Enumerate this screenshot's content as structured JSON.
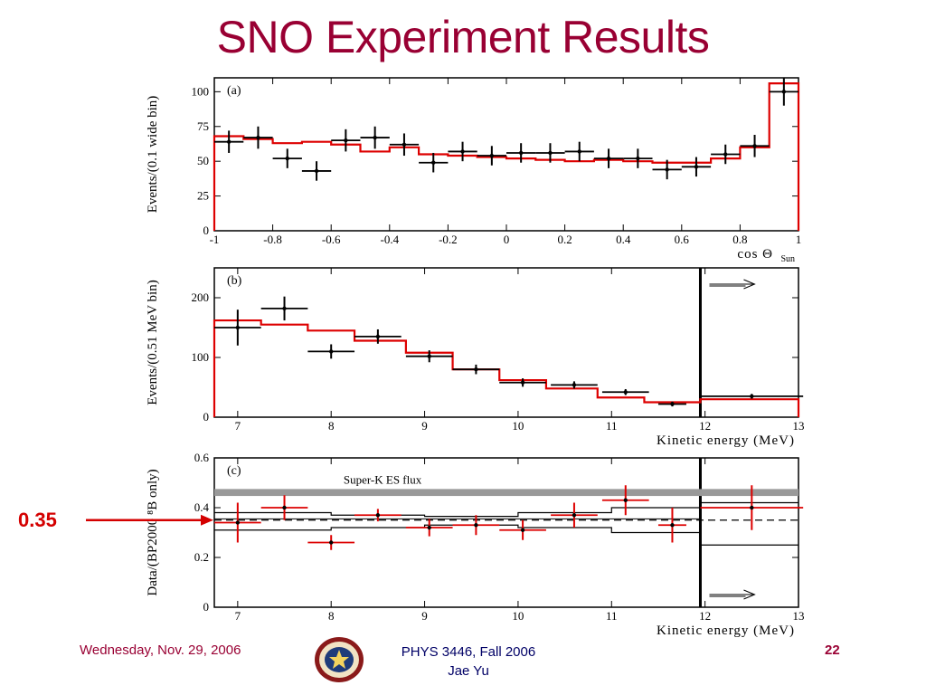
{
  "slide": {
    "title": "SNO Experiment Results",
    "callout_label": "0.35",
    "footer_date": "Wednesday, Nov. 29, 2006",
    "footer_course": "PHYS 3446, Fall 2006",
    "footer_author": "Jae Yu",
    "page_number": "22"
  },
  "colors": {
    "title": "#990033",
    "fit": "#dd0000",
    "data": "#000000",
    "band": "#999999",
    "callout": "#d40000"
  },
  "chart_data": [
    {
      "type": "line",
      "panel_label": "(a)",
      "ylabel": "Events/(0.1 wide bin)",
      "xlabel": "cos Θ",
      "xlabel_sub": "Sun",
      "xlim": [
        -1,
        1
      ],
      "ylim": [
        0,
        110
      ],
      "xticks": [
        -1,
        -0.8,
        -0.6,
        -0.4,
        -0.2,
        0,
        0.2,
        0.4,
        0.6,
        0.8,
        1
      ],
      "xtick_labels": [
        "-1",
        "-0.8",
        "-0.6",
        "-0.4",
        "-0.2",
        "0",
        "0.2",
        "0.4",
        "0.6",
        "0.8",
        "1"
      ],
      "yticks": [
        0,
        25,
        50,
        75,
        100
      ],
      "ytick_labels": [
        "0",
        "25",
        "50",
        "75",
        "100"
      ],
      "data_points": [
        {
          "x": -0.95,
          "y": 64,
          "err": 8
        },
        {
          "x": -0.85,
          "y": 67,
          "err": 8
        },
        {
          "x": -0.75,
          "y": 52,
          "err": 7
        },
        {
          "x": -0.65,
          "y": 43,
          "err": 7
        },
        {
          "x": -0.55,
          "y": 65,
          "err": 8
        },
        {
          "x": -0.45,
          "y": 67,
          "err": 8
        },
        {
          "x": -0.35,
          "y": 62,
          "err": 8
        },
        {
          "x": -0.25,
          "y": 49,
          "err": 7
        },
        {
          "x": -0.15,
          "y": 57,
          "err": 7
        },
        {
          "x": -0.05,
          "y": 54,
          "err": 7
        },
        {
          "x": 0.05,
          "y": 56,
          "err": 7
        },
        {
          "x": 0.15,
          "y": 56,
          "err": 7
        },
        {
          "x": 0.25,
          "y": 57,
          "err": 7
        },
        {
          "x": 0.35,
          "y": 52,
          "err": 7
        },
        {
          "x": 0.45,
          "y": 52,
          "err": 7
        },
        {
          "x": 0.55,
          "y": 44,
          "err": 7
        },
        {
          "x": 0.65,
          "y": 46,
          "err": 7
        },
        {
          "x": 0.75,
          "y": 55,
          "err": 7
        },
        {
          "x": 0.85,
          "y": 61,
          "err": 8
        },
        {
          "x": 0.95,
          "y": 100,
          "err": 10
        }
      ],
      "fit_edges": [
        -1,
        -0.9,
        -0.8,
        -0.7,
        -0.6,
        -0.5,
        -0.4,
        -0.3,
        -0.2,
        -0.1,
        0,
        0.1,
        0.2,
        0.3,
        0.4,
        0.5,
        0.6,
        0.7,
        0.8,
        0.9,
        1
      ],
      "fit_values": [
        68,
        66,
        63,
        64,
        62,
        57,
        60,
        55,
        54,
        53,
        52,
        51,
        50,
        51,
        50,
        49,
        49,
        52,
        60,
        106
      ]
    },
    {
      "type": "line",
      "panel_label": "(b)",
      "ylabel": "Events/(0.51 MeV bin)",
      "xlabel": "Kinetic energy (MeV)",
      "xlim": [
        6.75,
        13
      ],
      "ylim": [
        0,
        250
      ],
      "xticks": [
        7,
        8,
        9,
        10,
        11,
        12,
        13
      ],
      "xtick_labels": [
        "7",
        "8",
        "9",
        "10",
        "11",
        "12",
        "13"
      ],
      "yticks": [
        0,
        100,
        200
      ],
      "ytick_labels": [
        "0",
        "100",
        "200"
      ],
      "threshold_x": 11.95,
      "data_points": [
        {
          "x": 7.0,
          "y": 150,
          "xerr": 0.25,
          "err": 30
        },
        {
          "x": 7.5,
          "y": 182,
          "xerr": 0.25,
          "err": 20
        },
        {
          "x": 8.0,
          "y": 110,
          "xerr": 0.25,
          "err": 12
        },
        {
          "x": 8.5,
          "y": 135,
          "xerr": 0.25,
          "err": 12
        },
        {
          "x": 9.05,
          "y": 102,
          "xerr": 0.25,
          "err": 10
        },
        {
          "x": 9.55,
          "y": 80,
          "xerr": 0.25,
          "err": 8
        },
        {
          "x": 10.05,
          "y": 58,
          "xerr": 0.25,
          "err": 7
        },
        {
          "x": 10.6,
          "y": 54,
          "xerr": 0.25,
          "err": 6
        },
        {
          "x": 11.15,
          "y": 42,
          "xerr": 0.25,
          "err": 5
        },
        {
          "x": 11.65,
          "y": 22,
          "xerr": 0.15,
          "err": 4
        },
        {
          "x": 12.5,
          "y": 35,
          "xerr": 0.55,
          "err": 4
        }
      ],
      "fit_edges": [
        6.75,
        7.25,
        7.75,
        8.25,
        8.8,
        9.3,
        9.8,
        10.3,
        10.85,
        11.35,
        11.95,
        13
      ],
      "fit_values": [
        162,
        155,
        145,
        128,
        108,
        80,
        62,
        48,
        33,
        25,
        30
      ]
    },
    {
      "type": "line",
      "panel_label": "(c)",
      "ylabel": "Data/(BP2000 ⁸B only)",
      "xlabel": "Kinetic energy (MeV)",
      "xlim": [
        6.75,
        13
      ],
      "ylim": [
        0,
        0.6
      ],
      "xticks": [
        7,
        8,
        9,
        10,
        11,
        12,
        13
      ],
      "xtick_labels": [
        "7",
        "8",
        "9",
        "10",
        "11",
        "12",
        "13"
      ],
      "yticks": [
        0,
        0.2,
        0.4,
        0.6
      ],
      "ytick_labels": [
        "0",
        "0.2",
        "0.4",
        "0.6"
      ],
      "band_label": "Super-K ES flux",
      "band_range": [
        0.447,
        0.475
      ],
      "reference_level": 0.35,
      "threshold_x": 11.95,
      "data_points": [
        {
          "x": 7.0,
          "y": 0.34,
          "xerr": 0.25,
          "err": 0.08
        },
        {
          "x": 7.5,
          "y": 0.4,
          "xerr": 0.25,
          "err": 0.05
        },
        {
          "x": 8.0,
          "y": 0.26,
          "xerr": 0.25,
          "err": 0.03
        },
        {
          "x": 8.5,
          "y": 0.37,
          "xerr": 0.25,
          "err": 0.025
        },
        {
          "x": 9.05,
          "y": 0.32,
          "xerr": 0.25,
          "err": 0.035
        },
        {
          "x": 9.55,
          "y": 0.33,
          "xerr": 0.25,
          "err": 0.04
        },
        {
          "x": 10.05,
          "y": 0.31,
          "xerr": 0.25,
          "err": 0.04
        },
        {
          "x": 10.6,
          "y": 0.37,
          "xerr": 0.25,
          "err": 0.05
        },
        {
          "x": 11.15,
          "y": 0.43,
          "xerr": 0.25,
          "err": 0.06
        },
        {
          "x": 11.65,
          "y": 0.33,
          "xerr": 0.15,
          "err": 0.07
        },
        {
          "x": 12.5,
          "y": 0.4,
          "xerr": 0.55,
          "err": 0.09
        }
      ],
      "syst_band_upper": [
        [
          6.75,
          0.38
        ],
        [
          8.0,
          0.37
        ],
        [
          9.0,
          0.365
        ],
        [
          10.0,
          0.38
        ],
        [
          11.0,
          0.4
        ],
        [
          11.95,
          0.42
        ]
      ],
      "syst_band_lower": [
        [
          6.75,
          0.31
        ],
        [
          8.0,
          0.32
        ],
        [
          9.0,
          0.33
        ],
        [
          10.0,
          0.32
        ],
        [
          11.0,
          0.3
        ],
        [
          11.95,
          0.27
        ]
      ],
      "syst_band_upper_right": [
        [
          11.95,
          0.42
        ],
        [
          13,
          0.42
        ]
      ],
      "syst_band_lower_right": [
        [
          11.95,
          0.25
        ],
        [
          13,
          0.25
        ]
      ]
    }
  ]
}
